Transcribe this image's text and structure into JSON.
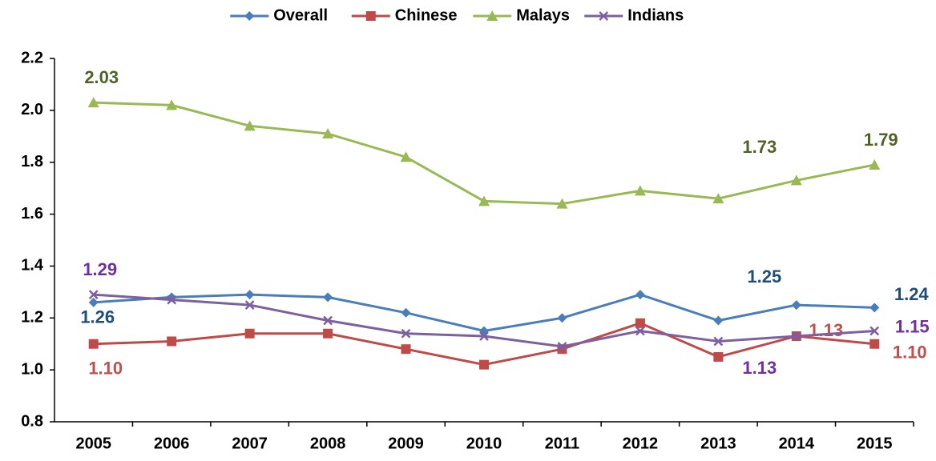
{
  "chart_data": {
    "type": "line",
    "categories": [
      "2005",
      "2006",
      "2007",
      "2008",
      "2009",
      "2010",
      "2011",
      "2012",
      "2013",
      "2014",
      "2015"
    ],
    "series": [
      {
        "name": "Overall",
        "color": "#4a7ebb",
        "marker": "diamond",
        "label_color": "#1f4e79",
        "values": [
          1.26,
          1.28,
          1.29,
          1.28,
          1.22,
          1.15,
          1.2,
          1.29,
          1.19,
          1.25,
          1.24
        ],
        "value_labels": [
          "1.26",
          null,
          null,
          null,
          null,
          null,
          null,
          null,
          null,
          "1.25",
          "1.24"
        ]
      },
      {
        "name": "Chinese",
        "color": "#be4b48",
        "marker": "square",
        "label_color": "#c0504d",
        "values": [
          1.1,
          1.11,
          1.14,
          1.14,
          1.08,
          1.02,
          1.08,
          1.18,
          1.05,
          1.13,
          1.1
        ],
        "value_labels": [
          "1.10",
          null,
          null,
          null,
          null,
          null,
          null,
          null,
          null,
          "1.13",
          "1.10"
        ]
      },
      {
        "name": "Malays",
        "color": "#98b954",
        "marker": "triangle",
        "label_color": "#4f6228",
        "values": [
          2.03,
          2.02,
          1.94,
          1.91,
          1.82,
          1.65,
          1.64,
          1.69,
          1.66,
          1.73,
          1.79
        ],
        "value_labels": [
          "2.03",
          null,
          null,
          null,
          null,
          null,
          null,
          null,
          null,
          "1.73",
          "1.79"
        ]
      },
      {
        "name": "Indians",
        "color": "#7d60a0",
        "marker": "x",
        "label_color": "#7030a0",
        "values": [
          1.29,
          1.27,
          1.25,
          1.19,
          1.14,
          1.13,
          1.09,
          1.15,
          1.11,
          1.13,
          1.15
        ],
        "value_labels": [
          "1.29",
          null,
          null,
          null,
          null,
          null,
          null,
          null,
          null,
          "1.13",
          "1.15"
        ]
      }
    ],
    "ylim": [
      0.8,
      2.2
    ],
    "yticks": [
      0.8,
      {
        "value": 1.0,
        "label": "1.0"
      },
      1.2,
      1.4,
      1.6,
      1.8,
      {
        "value": 2.0,
        "label": "2.0"
      },
      2.2
    ],
    "legend": "top"
  }
}
